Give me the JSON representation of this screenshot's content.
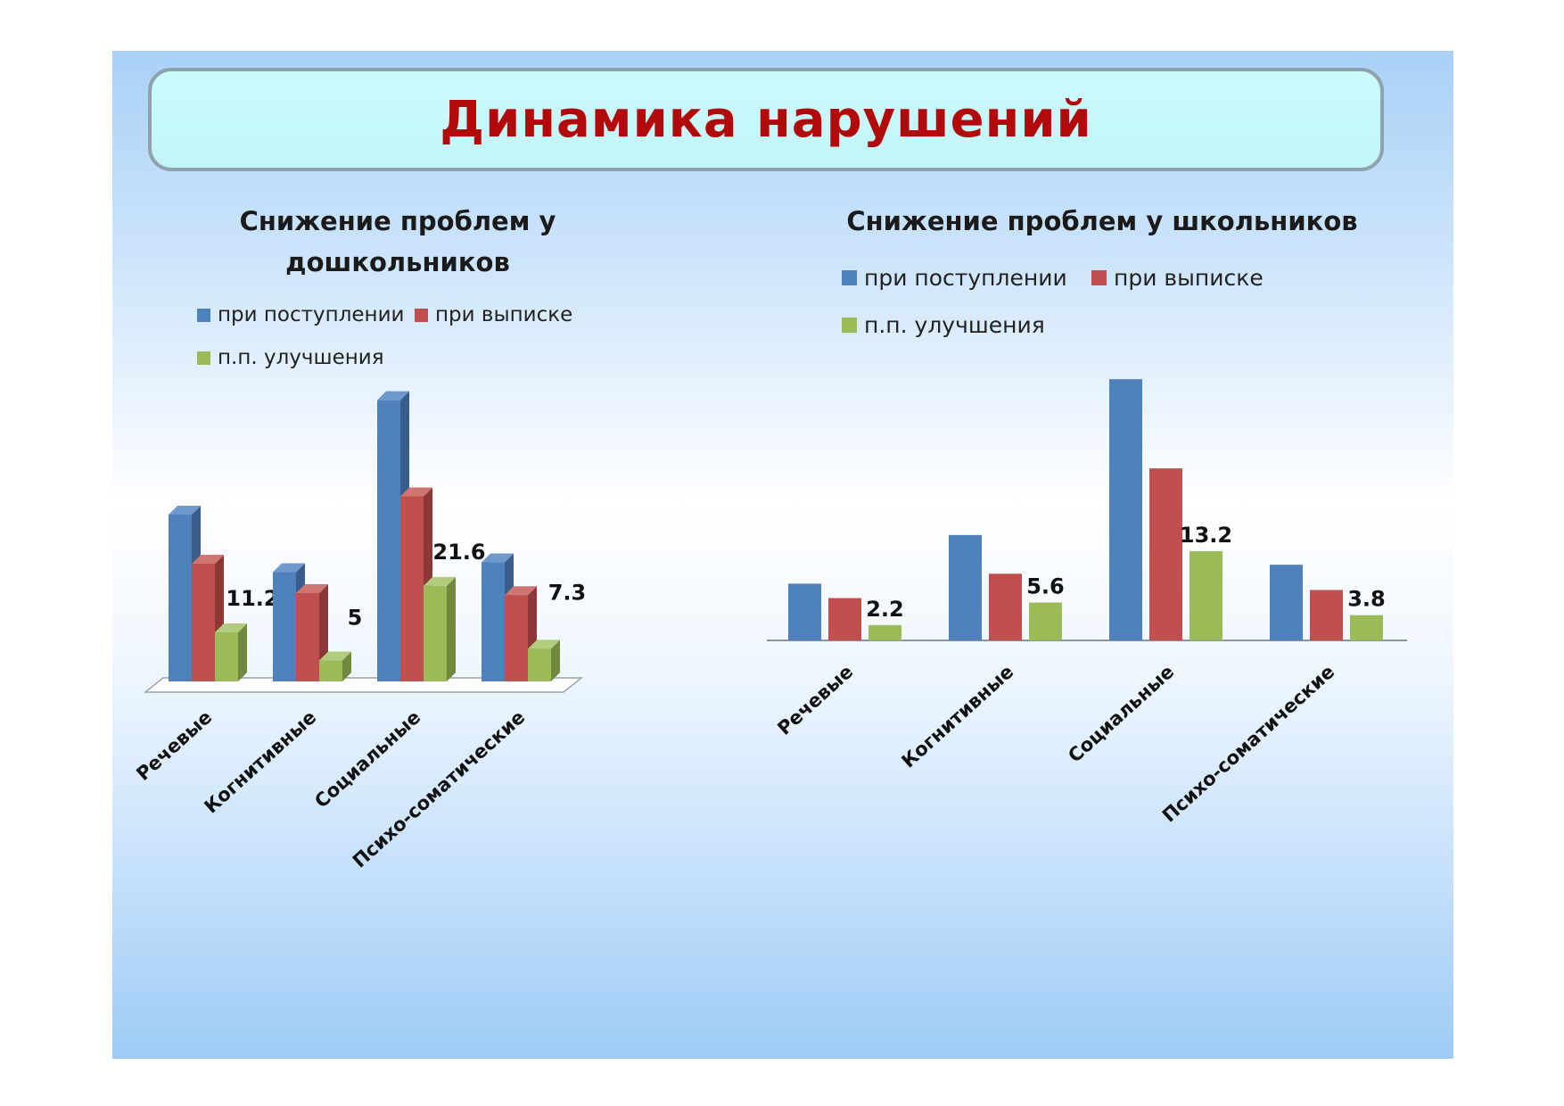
{
  "title": "Динамика нарушений",
  "colors": {
    "blue": "#4f81bd",
    "red": "#c0504d",
    "green": "#9bbb59",
    "title": "#b20a0a"
  },
  "chart_data": [
    {
      "type": "bar",
      "title": "Снижение проблем у дошкольников",
      "style": "3d-clustered-column",
      "categories": [
        "Речевые",
        "Когнитивные",
        "Социальные",
        "Психо-соматические"
      ],
      "series": [
        {
          "name": "при поступлении",
          "values": [
            25.5,
            16.7,
            43.0,
            18.2
          ]
        },
        {
          "name": "при выписке",
          "values": [
            18.0,
            13.5,
            28.3,
            13.2
          ]
        },
        {
          "name": "п.п. улучшения",
          "values": [
            7.5,
            3.2,
            14.6,
            5.0
          ]
        }
      ],
      "data_labels": [
        "11.2",
        "5",
        "21.6",
        "7.3"
      ],
      "ylim": [
        0,
        45
      ],
      "grid": false,
      "legend_position": "top"
    },
    {
      "type": "bar",
      "title": "Снижение проблем у школьников",
      "categories": [
        "Речевые",
        "Когнитивные",
        "Социальные",
        "Психо-соматические"
      ],
      "series": [
        {
          "name": "при поступлении",
          "values": [
            6.3,
            11.7,
            29.0,
            8.4
          ]
        },
        {
          "name": "при выписке",
          "values": [
            4.7,
            7.4,
            19.1,
            5.6
          ]
        },
        {
          "name": "п.п. улучшения",
          "values": [
            1.7,
            4.2,
            9.9,
            2.8
          ]
        }
      ],
      "data_labels": [
        "2.2",
        "5.6",
        "13.2",
        "3.8"
      ],
      "ylim": [
        0,
        30
      ],
      "grid": false,
      "legend_position": "top"
    }
  ]
}
